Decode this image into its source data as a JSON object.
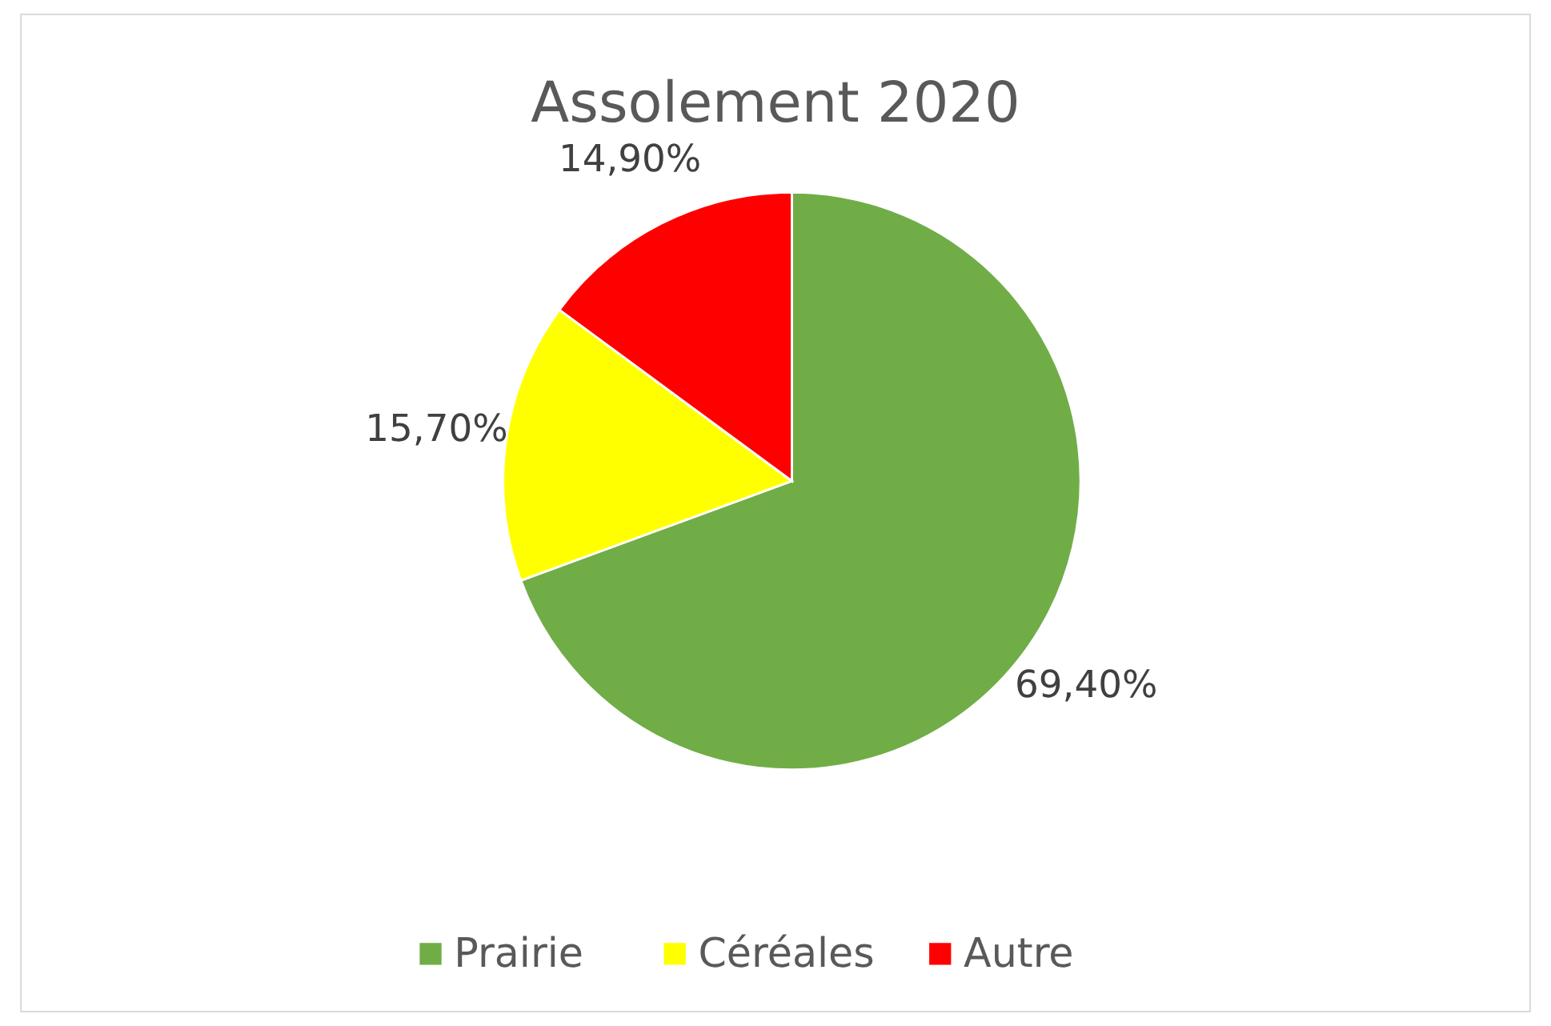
{
  "chart_data": {
    "type": "pie",
    "title": "Assolement 2020",
    "categories": [
      "Prairie",
      "Céréales",
      "Autre"
    ],
    "values": [
      69.4,
      15.7,
      14.9
    ],
    "colors": [
      "#70ad47",
      "#ffff00",
      "#ff0000"
    ],
    "value_labels": [
      "69,40%",
      "15,70%",
      "14,90%"
    ],
    "legend": "bottom"
  }
}
